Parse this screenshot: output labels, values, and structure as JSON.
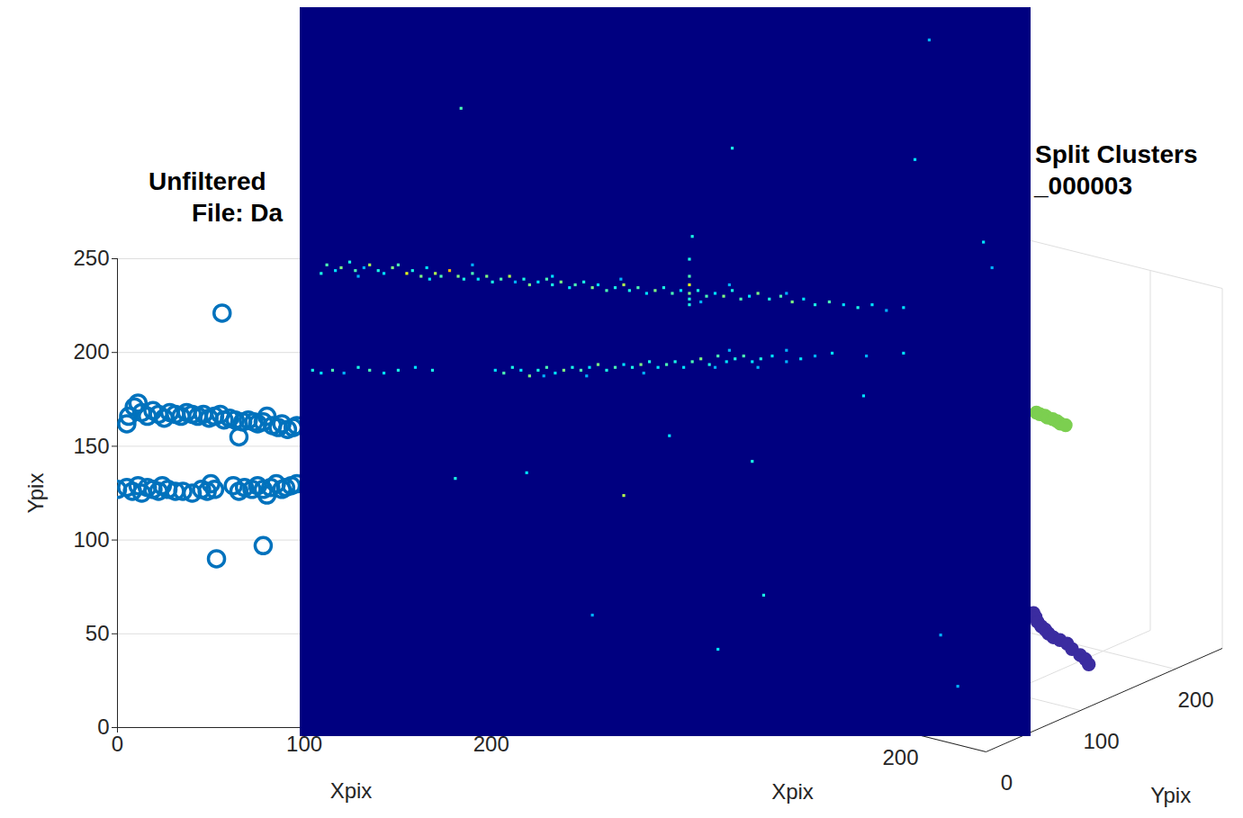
{
  "chart_data": [
    {
      "type": "scatter",
      "title": "Unfiltered",
      "subtitle": "File: Da",
      "x_label": "Xpix",
      "y_label": "Ypix",
      "xlim": [
        0,
        250
      ],
      "ylim": [
        0,
        250
      ],
      "xticks": [
        0,
        100,
        200
      ],
      "yticks": [
        0,
        50,
        100,
        150,
        200,
        250
      ],
      "grid": true,
      "color": "#0072bd",
      "marker": "circle",
      "x": [
        5,
        6,
        9,
        11,
        13,
        16,
        19,
        22,
        25,
        28,
        31,
        34,
        37,
        40,
        43,
        46,
        49,
        52,
        55,
        57,
        60,
        63,
        65,
        67,
        70,
        73,
        75,
        78,
        80,
        83,
        86,
        88,
        91,
        94,
        96,
        0,
        5,
        8,
        11,
        13,
        16,
        19,
        22,
        24,
        27,
        31,
        35,
        40,
        45,
        48,
        50,
        52,
        62,
        65,
        68,
        72,
        75,
        78,
        80,
        82,
        85,
        88,
        90,
        93,
        96,
        56,
        53,
        78
      ],
      "y": [
        162,
        166,
        171,
        173,
        168,
        166,
        169,
        167,
        165,
        168,
        167,
        166,
        168,
        167,
        166,
        167,
        165,
        166,
        167,
        164,
        165,
        164,
        155,
        163,
        164,
        163,
        162,
        163,
        166,
        161,
        160,
        162,
        159,
        160,
        161,
        127,
        128,
        126,
        129,
        125,
        128,
        127,
        126,
        129,
        127,
        126,
        126,
        125,
        127,
        126,
        130,
        127,
        129,
        126,
        128,
        127,
        129,
        127,
        124,
        128,
        130,
        127,
        128,
        129,
        130,
        221,
        90,
        97
      ]
    },
    {
      "type": "heatmap",
      "xlim": [
        0,
        256
      ],
      "ylim": [
        256,
        0
      ],
      "zlim": [
        0,
        1
      ],
      "tick_labels": false,
      "cells": [
        [
          7,
          93,
          0.4
        ],
        [
          9,
          90,
          0.45
        ],
        [
          12,
          92,
          0.35
        ],
        [
          14,
          91,
          0.5
        ],
        [
          17,
          89,
          0.4
        ],
        [
          19,
          92,
          0.45
        ],
        [
          22,
          91,
          0.3
        ],
        [
          24,
          90,
          0.55
        ],
        [
          27,
          92,
          0.4
        ],
        [
          29,
          93,
          0.35
        ],
        [
          32,
          91,
          0.5
        ],
        [
          34,
          90,
          0.45
        ],
        [
          37,
          93,
          0.6
        ],
        [
          39,
          92,
          0.4
        ],
        [
          42,
          94,
          0.5
        ],
        [
          44,
          91,
          0.35
        ],
        [
          47,
          93,
          0.55
        ],
        [
          49,
          94,
          0.45
        ],
        [
          52,
          92,
          0.7
        ],
        [
          55,
          94,
          0.5
        ],
        [
          57,
          95,
          0.4
        ],
        [
          60,
          93,
          0.45
        ],
        [
          62,
          95,
          0.35
        ],
        [
          65,
          94,
          0.5
        ],
        [
          67,
          96,
          0.4
        ],
        [
          70,
          95,
          0.45
        ],
        [
          73,
          94,
          0.55
        ],
        [
          75,
          96,
          0.3
        ],
        [
          78,
          95,
          0.4
        ],
        [
          80,
          97,
          0.5
        ],
        [
          83,
          96,
          0.35
        ],
        [
          86,
          95,
          0.45
        ],
        [
          88,
          97,
          0.4
        ],
        [
          91,
          96,
          0.5
        ],
        [
          94,
          98,
          0.35
        ],
        [
          96,
          97,
          0.45
        ],
        [
          99,
          96,
          0.4
        ],
        [
          102,
          98,
          0.5
        ],
        [
          104,
          97,
          0.35
        ],
        [
          107,
          99,
          0.45
        ],
        [
          110,
          98,
          0.4
        ],
        [
          113,
          97,
          0.55
        ],
        [
          115,
          99,
          0.4
        ],
        [
          118,
          98,
          0.45
        ],
        [
          121,
          100,
          0.35
        ],
        [
          124,
          99,
          0.5
        ],
        [
          127,
          98,
          0.4
        ],
        [
          130,
          100,
          0.45
        ],
        [
          133,
          99,
          0.35
        ],
        [
          136,
          97,
          0.6
        ],
        [
          136,
          100,
          0.5
        ],
        [
          139,
          99,
          0.4
        ],
        [
          142,
          101,
          0.45
        ],
        [
          145,
          100,
          0.35
        ],
        [
          148,
          101,
          0.5
        ],
        [
          151,
          99,
          0.4
        ],
        [
          154,
          102,
          0.45
        ],
        [
          157,
          101,
          0.35
        ],
        [
          160,
          100,
          0.5
        ],
        [
          164,
          102,
          0.4
        ],
        [
          168,
          101,
          0.45
        ],
        [
          172,
          103,
          0.5
        ],
        [
          176,
          102,
          0.35
        ],
        [
          180,
          104,
          0.4
        ],
        [
          185,
          103,
          0.45
        ],
        [
          190,
          104,
          0.35
        ],
        [
          195,
          105,
          0.4
        ],
        [
          200,
          104,
          0.35
        ],
        [
          205,
          106,
          0.3
        ],
        [
          211,
          105,
          0.35
        ],
        [
          20,
          94,
          0.3
        ],
        [
          45,
          95,
          0.35
        ],
        [
          60,
          90,
          0.3
        ],
        [
          88,
          94,
          0.35
        ],
        [
          112,
          95,
          0.3
        ],
        [
          150,
          97,
          0.3
        ],
        [
          170,
          100,
          0.3
        ],
        [
          140,
          103,
          0.3
        ],
        [
          136,
          94,
          0.45
        ],
        [
          136,
          102,
          0.4
        ],
        [
          136,
          88,
          0.4
        ],
        [
          136,
          104,
          0.4
        ],
        [
          4,
          127,
          0.4
        ],
        [
          7,
          128,
          0.35
        ],
        [
          11,
          127,
          0.45
        ],
        [
          15,
          128,
          0.3
        ],
        [
          20,
          126,
          0.4
        ],
        [
          24,
          127,
          0.45
        ],
        [
          29,
          128,
          0.35
        ],
        [
          34,
          127,
          0.4
        ],
        [
          40,
          126,
          0.35
        ],
        [
          46,
          127,
          0.4
        ],
        [
          68,
          127,
          0.35
        ],
        [
          71,
          128,
          0.45
        ],
        [
          74,
          126,
          0.4
        ],
        [
          77,
          127,
          0.35
        ],
        [
          80,
          129,
          0.5
        ],
        [
          83,
          127,
          0.4
        ],
        [
          86,
          126,
          0.45
        ],
        [
          89,
          128,
          0.35
        ],
        [
          92,
          127,
          0.5
        ],
        [
          95,
          126,
          0.4
        ],
        [
          98,
          127,
          0.45
        ],
        [
          101,
          126,
          0.35
        ],
        [
          104,
          125,
          0.5
        ],
        [
          107,
          127,
          0.4
        ],
        [
          110,
          126,
          0.45
        ],
        [
          113,
          125,
          0.35
        ],
        [
          116,
          126,
          0.4
        ],
        [
          119,
          125,
          0.5
        ],
        [
          122,
          124,
          0.4
        ],
        [
          125,
          126,
          0.35
        ],
        [
          128,
          125,
          0.45
        ],
        [
          131,
          124,
          0.4
        ],
        [
          134,
          126,
          0.35
        ],
        [
          137,
          124,
          0.45
        ],
        [
          140,
          123,
          0.5
        ],
        [
          143,
          125,
          0.4
        ],
        [
          146,
          122,
          0.45
        ],
        [
          149,
          124,
          0.35
        ],
        [
          152,
          123,
          0.4
        ],
        [
          155,
          122,
          0.45
        ],
        [
          158,
          124,
          0.35
        ],
        [
          161,
          123,
          0.4
        ],
        [
          165,
          122,
          0.35
        ],
        [
          170,
          124,
          0.3
        ],
        [
          175,
          123,
          0.35
        ],
        [
          180,
          122,
          0.3
        ],
        [
          186,
          121,
          0.35
        ],
        [
          198,
          122,
          0.3
        ],
        [
          211,
          121,
          0.35
        ],
        [
          85,
          129,
          0.3
        ],
        [
          100,
          129,
          0.3
        ],
        [
          120,
          128,
          0.3
        ],
        [
          145,
          126,
          0.3
        ],
        [
          160,
          126,
          0.3
        ],
        [
          150,
          120,
          0.3
        ],
        [
          170,
          120,
          0.3
        ],
        [
          56,
          35,
          0.45
        ],
        [
          151,
          49,
          0.4
        ],
        [
          215,
          53,
          0.35
        ],
        [
          220,
          11,
          0.3
        ],
        [
          137,
          80,
          0.4
        ],
        [
          239,
          82,
          0.35
        ],
        [
          242,
          91,
          0.3
        ],
        [
          54,
          165,
          0.4
        ],
        [
          79,
          163,
          0.35
        ],
        [
          113,
          171,
          0.55
        ],
        [
          129,
          150,
          0.35
        ],
        [
          158,
          159,
          0.4
        ],
        [
          197,
          136,
          0.35
        ],
        [
          162,
          206,
          0.4
        ],
        [
          102,
          213,
          0.3
        ],
        [
          146,
          225,
          0.35
        ],
        [
          224,
          220,
          0.3
        ],
        [
          230,
          238,
          0.3
        ]
      ]
    },
    {
      "type": "scatter3d",
      "title": "Split Clusters",
      "subtitle": "_000003",
      "x_label": "Xpix",
      "y_label": "Ypix",
      "xlim": [
        0,
        250
      ],
      "ylim": [
        0,
        250
      ],
      "zlim": [
        0,
        400
      ],
      "xticks": [
        200
      ],
      "yticks": [
        0,
        100,
        200
      ],
      "grid": true,
      "marker": "circle",
      "series": [
        {
          "color": "#7ccf50",
          "x": [
            176,
            179,
            182,
            185,
            188,
            191,
            194,
            197
          ],
          "y": [
            166,
            165,
            166,
            164,
            165,
            165,
            164,
            165
          ],
          "z": [
            271,
            271,
            270,
            270,
            269,
            268,
            267,
            266
          ]
        },
        {
          "color": "#3b2ca0",
          "x": [
            199,
            201,
            203,
            205,
            207,
            210,
            214,
            218,
            223,
            227,
            232,
            235,
            238
          ],
          "y": [
            128,
            127,
            126,
            127,
            128,
            127,
            126,
            127,
            127,
            126,
            127,
            128,
            127
          ],
          "z": [
            75,
            72,
            68,
            63,
            60,
            57,
            55,
            53,
            51,
            47,
            42,
            38,
            34
          ]
        }
      ]
    }
  ]
}
